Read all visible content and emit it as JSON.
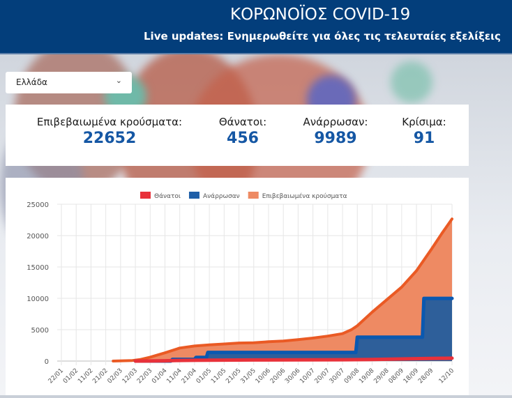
{
  "header": {
    "title": "ΚΟΡΩΝΟΪΟΣ COVID-19",
    "subtitle": "Live updates: Ενημερωθείτε για όλες τις τελευταίες εξελίξεις"
  },
  "country_select": {
    "value": "Ελλάδα",
    "icon": "chevron-down-icon"
  },
  "stats": [
    {
      "label": "Επιβεβαιωμένα κρούσματα:",
      "value": "22652"
    },
    {
      "label": "Θάνατοι:",
      "value": "456"
    },
    {
      "label": "Ανάρρωσαν:",
      "value": "9989"
    },
    {
      "label": "Κρίσιμα:",
      "value": "91"
    }
  ],
  "chart_data": {
    "type": "area",
    "title": "",
    "xlabel": "",
    "ylabel": "",
    "legend_position": "top",
    "grid": true,
    "ylim": [
      0,
      25000
    ],
    "yticks": [
      "0",
      "5000",
      "10000",
      "15000",
      "20000",
      "25000"
    ],
    "xticks": [
      "22/01",
      "01/02",
      "11/02",
      "21/02",
      "02/03",
      "12/03",
      "22/03",
      "01/04",
      "11/04",
      "21/04",
      "01/05",
      "11/05",
      "21/05",
      "31/05",
      "10/06",
      "20/06",
      "30/06",
      "10/07",
      "20/07",
      "30/07",
      "09/08",
      "19/08",
      "29/08",
      "08/09",
      "18/09",
      "28/09",
      "12/10"
    ],
    "series": [
      {
        "name": "Θάνατοι",
        "color": "#e8313a",
        "points": [
          [
            "12/03",
            1
          ],
          [
            "22/03",
            15
          ],
          [
            "01/04",
            50
          ],
          [
            "11/04",
            100
          ],
          [
            "21/04",
            120
          ],
          [
            "01/05",
            140
          ],
          [
            "11/05",
            150
          ],
          [
            "21/05",
            170
          ],
          [
            "31/05",
            175
          ],
          [
            "30/06",
            192
          ],
          [
            "30/07",
            206
          ],
          [
            "19/08",
            240
          ],
          [
            "18/09",
            380
          ],
          [
            "28/09",
            410
          ],
          [
            "12/10",
            456
          ]
        ]
      },
      {
        "name": "Ανάρρωσαν",
        "color": "#1f5fa8",
        "points": [
          [
            "12/03",
            0
          ],
          [
            "05/04",
            0
          ],
          [
            "06/04",
            269
          ],
          [
            "21/04",
            269
          ],
          [
            "22/04",
            577
          ],
          [
            "29/04",
            577
          ],
          [
            "30/04",
            1374
          ],
          [
            "08/08",
            1374
          ],
          [
            "09/08",
            3804
          ],
          [
            "22/09",
            3804
          ],
          [
            "23/09",
            9989
          ],
          [
            "12/10",
            9989
          ]
        ]
      },
      {
        "name": "Επιβεβαιωμένα κρούσματα",
        "color": "#ee8a63",
        "line_color": "#ea5a24",
        "points": [
          [
            "26/02",
            1
          ],
          [
            "10/03",
            89
          ],
          [
            "15/03",
            228
          ],
          [
            "22/03",
            624
          ],
          [
            "01/04",
            1314
          ],
          [
            "11/04",
            2081
          ],
          [
            "21/04",
            2401
          ],
          [
            "01/05",
            2591
          ],
          [
            "11/05",
            2726
          ],
          [
            "21/05",
            2873
          ],
          [
            "31/05",
            2917
          ],
          [
            "10/06",
            3083
          ],
          [
            "20/06",
            3203
          ],
          [
            "30/06",
            3409
          ],
          [
            "10/07",
            3672
          ],
          [
            "20/07",
            3983
          ],
          [
            "30/07",
            4366
          ],
          [
            "05/08",
            5000
          ],
          [
            "09/08",
            5623
          ],
          [
            "19/08",
            7800
          ],
          [
            "29/08",
            9800
          ],
          [
            "08/09",
            11800
          ],
          [
            "18/09",
            14400
          ],
          [
            "28/09",
            17800
          ],
          [
            "05/10",
            20300
          ],
          [
            "12/10",
            22652
          ]
        ]
      }
    ]
  }
}
